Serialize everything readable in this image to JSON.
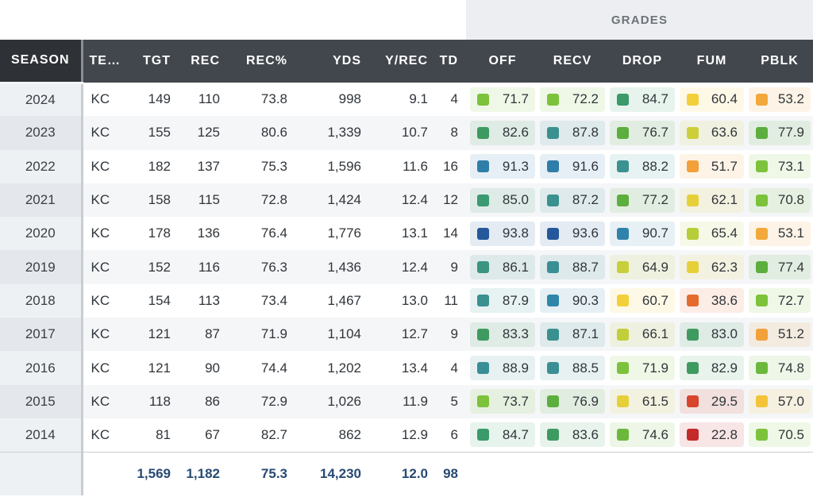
{
  "header": {
    "group_label": "GRADES",
    "columns": {
      "season": "SEASON",
      "team": "TE…",
      "tgt": "TGT",
      "rec": "REC",
      "rec_pct": "REC%",
      "yds": "YDS",
      "y_rec": "Y/REC",
      "td": "TD",
      "off": "OFF",
      "recv": "RECV",
      "drop": "DROP",
      "fum": "FUM",
      "pblk": "PBLK"
    }
  },
  "rows": [
    {
      "season": "2024",
      "team": "KC",
      "tgt": "149",
      "rec": "110",
      "rec_pct": "73.8",
      "yds": "998",
      "y_rec": "9.1",
      "td": "4",
      "off": {
        "value": "71.7",
        "color": "#7cc23b"
      },
      "recv": {
        "value": "72.2",
        "color": "#7cc23b"
      },
      "drop": {
        "value": "84.7",
        "color": "#3a9a6a"
      },
      "fum": {
        "value": "60.4",
        "color": "#f3cf3a"
      },
      "pblk": {
        "value": "53.2",
        "color": "#f2a83b"
      }
    },
    {
      "season": "2023",
      "team": "KC",
      "tgt": "155",
      "rec": "125",
      "rec_pct": "80.6",
      "yds": "1,339",
      "y_rec": "10.7",
      "td": "8",
      "off": {
        "value": "82.6",
        "color": "#3f9a62"
      },
      "recv": {
        "value": "87.8",
        "color": "#3a9190"
      },
      "drop": {
        "value": "76.7",
        "color": "#5cae3e"
      },
      "fum": {
        "value": "63.6",
        "color": "#cdcf3a"
      },
      "pblk": {
        "value": "77.9",
        "color": "#5cae3e"
      }
    },
    {
      "season": "2022",
      "team": "KC",
      "tgt": "182",
      "rec": "137",
      "rec_pct": "75.3",
      "yds": "1,596",
      "y_rec": "11.6",
      "td": "16",
      "off": {
        "value": "91.3",
        "color": "#2f7ea9"
      },
      "recv": {
        "value": "91.6",
        "color": "#2f7ea9"
      },
      "drop": {
        "value": "88.2",
        "color": "#3a9190"
      },
      "fum": {
        "value": "51.7",
        "color": "#f2a03a"
      },
      "pblk": {
        "value": "73.1",
        "color": "#7cc23b"
      }
    },
    {
      "season": "2021",
      "team": "KC",
      "tgt": "158",
      "rec": "115",
      "rec_pct": "72.8",
      "yds": "1,424",
      "y_rec": "12.4",
      "td": "12",
      "off": {
        "value": "85.0",
        "color": "#3a9a72"
      },
      "recv": {
        "value": "87.2",
        "color": "#3a9190"
      },
      "drop": {
        "value": "77.2",
        "color": "#5cae3e"
      },
      "fum": {
        "value": "62.1",
        "color": "#e6d03a"
      },
      "pblk": {
        "value": "70.8",
        "color": "#7cc23b"
      }
    },
    {
      "season": "2020",
      "team": "KC",
      "tgt": "178",
      "rec": "136",
      "rec_pct": "76.4",
      "yds": "1,776",
      "y_rec": "13.1",
      "td": "14",
      "off": {
        "value": "93.8",
        "color": "#25579a"
      },
      "recv": {
        "value": "93.6",
        "color": "#25579a"
      },
      "drop": {
        "value": "90.7",
        "color": "#2f82aa"
      },
      "fum": {
        "value": "65.4",
        "color": "#b7cd3a"
      },
      "pblk": {
        "value": "53.1",
        "color": "#f2a83b"
      }
    },
    {
      "season": "2019",
      "team": "KC",
      "tgt": "152",
      "rec": "116",
      "rec_pct": "76.3",
      "yds": "1,436",
      "y_rec": "12.4",
      "td": "9",
      "off": {
        "value": "86.1",
        "color": "#3a9480"
      },
      "recv": {
        "value": "88.7",
        "color": "#3a8f95"
      },
      "drop": {
        "value": "64.9",
        "color": "#c8cf3a"
      },
      "fum": {
        "value": "62.3",
        "color": "#e6d03a"
      },
      "pblk": {
        "value": "77.4",
        "color": "#5cae3e"
      }
    },
    {
      "season": "2018",
      "team": "KC",
      "tgt": "154",
      "rec": "113",
      "rec_pct": "73.4",
      "yds": "1,467",
      "y_rec": "13.0",
      "td": "11",
      "off": {
        "value": "87.9",
        "color": "#3a9190"
      },
      "recv": {
        "value": "90.3",
        "color": "#2f86a8"
      },
      "drop": {
        "value": "60.7",
        "color": "#f3cf3a"
      },
      "fum": {
        "value": "38.6",
        "color": "#e56a2e"
      },
      "pblk": {
        "value": "72.7",
        "color": "#7cc23b"
      }
    },
    {
      "season": "2017",
      "team": "KC",
      "tgt": "121",
      "rec": "87",
      "rec_pct": "71.9",
      "yds": "1,104",
      "y_rec": "12.7",
      "td": "9",
      "off": {
        "value": "83.3",
        "color": "#3f9a62"
      },
      "recv": {
        "value": "87.1",
        "color": "#3a9190"
      },
      "drop": {
        "value": "66.1",
        "color": "#c0cf3a"
      },
      "fum": {
        "value": "83.0",
        "color": "#3f9a62"
      },
      "pblk": {
        "value": "51.2",
        "color": "#f2a03a"
      }
    },
    {
      "season": "2016",
      "team": "KC",
      "tgt": "121",
      "rec": "90",
      "rec_pct": "74.4",
      "yds": "1,202",
      "y_rec": "13.4",
      "td": "4",
      "off": {
        "value": "88.9",
        "color": "#3a8f95"
      },
      "recv": {
        "value": "88.5",
        "color": "#3a8f95"
      },
      "drop": {
        "value": "71.9",
        "color": "#7cc23b"
      },
      "fum": {
        "value": "82.9",
        "color": "#3f9a62"
      },
      "pblk": {
        "value": "74.8",
        "color": "#6cb83c"
      }
    },
    {
      "season": "2015",
      "team": "KC",
      "tgt": "118",
      "rec": "86",
      "rec_pct": "72.9",
      "yds": "1,026",
      "y_rec": "11.9",
      "td": "5",
      "off": {
        "value": "73.7",
        "color": "#7cc23b"
      },
      "recv": {
        "value": "76.9",
        "color": "#5cae3e"
      },
      "drop": {
        "value": "61.5",
        "color": "#e6d03a"
      },
      "fum": {
        "value": "29.5",
        "color": "#d6452c"
      },
      "pblk": {
        "value": "57.0",
        "color": "#f3c43a"
      }
    },
    {
      "season": "2014",
      "team": "KC",
      "tgt": "81",
      "rec": "67",
      "rec_pct": "82.7",
      "yds": "862",
      "y_rec": "12.9",
      "td": "6",
      "off": {
        "value": "84.7",
        "color": "#3a9a6a"
      },
      "recv": {
        "value": "83.6",
        "color": "#3f9a62"
      },
      "drop": {
        "value": "74.6",
        "color": "#6cb83c"
      },
      "fum": {
        "value": "22.8",
        "color": "#c42a2a"
      },
      "pblk": {
        "value": "70.5",
        "color": "#7cc23b"
      }
    }
  ],
  "totals": {
    "tgt": "1,569",
    "rec": "1,182",
    "rec_pct": "75.3",
    "yds": "14,230",
    "y_rec": "12.0",
    "td": "98"
  }
}
